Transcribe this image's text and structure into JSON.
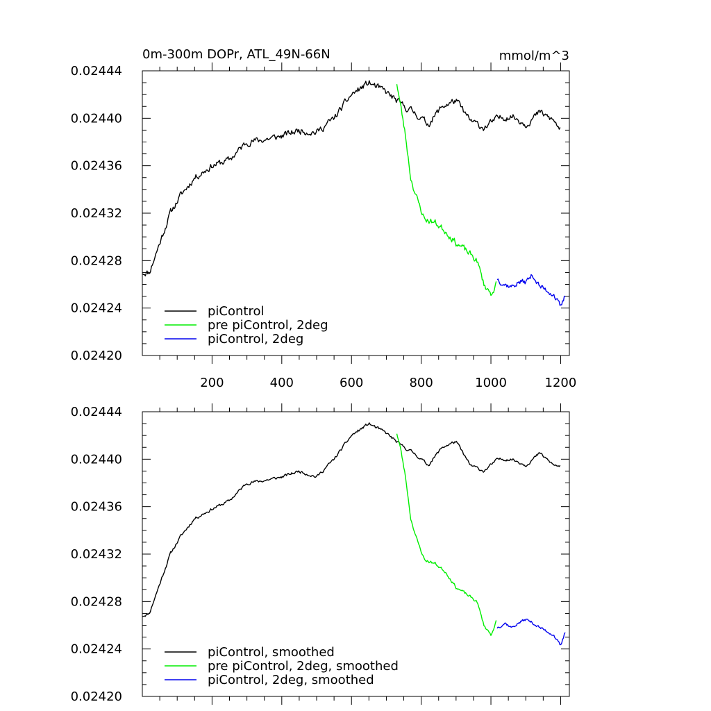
{
  "colors": {
    "piControl": "#000000",
    "pre_2deg": "#00ee00",
    "piControl_2deg": "#0000ee"
  },
  "chart_data": [
    {
      "type": "line",
      "title": "0m-300m DOPr, ATL_49N-66N",
      "units": "mmol/m^3",
      "xlim": [
        0,
        1225
      ],
      "ylim": [
        0.0242,
        0.02444
      ],
      "xticks": [
        200,
        400,
        600,
        800,
        1000,
        1200
      ],
      "xtick_labels": [
        "200",
        "400",
        "600",
        "800",
        "1000",
        "1200"
      ],
      "yticks": [
        0.0242,
        0.02424,
        0.02428,
        0.02432,
        0.02436,
        0.0244,
        0.02444
      ],
      "ytick_labels": [
        "0.02420",
        "0.02424",
        "0.02428",
        "0.02432",
        "0.02436",
        "0.02440",
        "0.02444"
      ],
      "legend": [
        "piControl",
        "pre piControl, 2deg",
        "piControl, 2deg"
      ],
      "legend_position": "bottom-left",
      "series": [
        {
          "name": "piControl",
          "color": "#000000",
          "noise": 1.8,
          "seed": 11,
          "x": [
            1,
            20,
            50,
            80,
            110,
            150,
            200,
            250,
            300,
            350,
            400,
            450,
            500,
            550,
            600,
            650,
            700,
            740,
            780,
            820,
            860,
            900,
            940,
            980,
            1020,
            1060,
            1100,
            1140,
            1180,
            1200
          ],
          "y": [
            0.02427,
            0.02427,
            0.024295,
            0.02432,
            0.024335,
            0.02435,
            0.02436,
            0.024365,
            0.02438,
            0.024382,
            0.024385,
            0.02439,
            0.024388,
            0.0244,
            0.02442,
            0.02443,
            0.024422,
            0.024412,
            0.024405,
            0.024395,
            0.02441,
            0.024415,
            0.024398,
            0.024392,
            0.0244,
            0.024402,
            0.024395,
            0.024405,
            0.024398,
            0.02439
          ]
        },
        {
          "name": "pre piControl, 2deg",
          "color": "#00ee00",
          "noise": 1.8,
          "seed": 23,
          "x": [
            730,
            740,
            755,
            770,
            790,
            810,
            840,
            870,
            900,
            930,
            960,
            980,
            1000,
            1015
          ],
          "y": [
            0.02443,
            0.024412,
            0.024385,
            0.02435,
            0.02433,
            0.024315,
            0.024312,
            0.024305,
            0.024295,
            0.024288,
            0.02428,
            0.02426,
            0.024252,
            0.02426
          ]
        },
        {
          "name": "piControl, 2deg",
          "color": "#0000ee",
          "noise": 1.6,
          "seed": 37,
          "x": [
            1018,
            1040,
            1060,
            1080,
            1100,
            1120,
            1140,
            1160,
            1180,
            1200,
            1215
          ],
          "y": [
            0.024265,
            0.02426,
            0.024258,
            0.024262,
            0.024262,
            0.024268,
            0.024258,
            0.024255,
            0.024252,
            0.02424,
            0.024252
          ]
        }
      ]
    },
    {
      "type": "line",
      "title": "",
      "units": "",
      "xlim": [
        0,
        1225
      ],
      "ylim": [
        0.0242,
        0.02444
      ],
      "xticks": [
        200,
        400,
        600,
        800,
        1000,
        1200
      ],
      "xtick_labels": [],
      "yticks": [
        0.0242,
        0.02424,
        0.02428,
        0.02432,
        0.02436,
        0.0244,
        0.02444
      ],
      "ytick_labels": [
        "0.02420",
        "0.02424",
        "0.02428",
        "0.02432",
        "0.02436",
        "0.02440",
        "0.02444"
      ],
      "legend": [
        "piControl, smoothed",
        "pre piControl, 2deg, smoothed",
        "piControl, 2deg, smoothed"
      ],
      "legend_position": "bottom-left",
      "series": [
        {
          "name": "piControl, smoothed",
          "color": "#000000",
          "noise": 0.8,
          "seed": 11,
          "x": [
            1,
            20,
            50,
            80,
            110,
            150,
            200,
            250,
            300,
            350,
            400,
            450,
            500,
            550,
            600,
            650,
            700,
            740,
            780,
            820,
            860,
            900,
            940,
            980,
            1020,
            1060,
            1100,
            1140,
            1180,
            1200
          ],
          "y": [
            0.024268,
            0.02427,
            0.024295,
            0.02432,
            0.024335,
            0.02435,
            0.024358,
            0.024365,
            0.02438,
            0.024382,
            0.024385,
            0.02439,
            0.024385,
            0.0244,
            0.02442,
            0.02443,
            0.024422,
            0.024412,
            0.024405,
            0.024395,
            0.02441,
            0.024415,
            0.024395,
            0.02439,
            0.0244,
            0.0244,
            0.024395,
            0.024405,
            0.024395,
            0.024394
          ]
        },
        {
          "name": "pre piControl, 2deg, smoothed",
          "color": "#00ee00",
          "noise": 0.8,
          "seed": 23,
          "x": [
            730,
            740,
            755,
            770,
            790,
            810,
            840,
            870,
            900,
            930,
            960,
            980,
            1000,
            1015
          ],
          "y": [
            0.024422,
            0.02441,
            0.024385,
            0.02435,
            0.02433,
            0.024315,
            0.024312,
            0.024305,
            0.024292,
            0.024286,
            0.02428,
            0.02426,
            0.024252,
            0.024263
          ]
        },
        {
          "name": "piControl, 2deg, smoothed",
          "color": "#0000ee",
          "noise": 0.8,
          "seed": 37,
          "x": [
            1018,
            1040,
            1060,
            1080,
            1100,
            1120,
            1140,
            1160,
            1180,
            1200,
            1215
          ],
          "y": [
            0.024258,
            0.024262,
            0.024258,
            0.024262,
            0.024265,
            0.024262,
            0.024258,
            0.024255,
            0.024252,
            0.024242,
            0.024256
          ]
        }
      ]
    }
  ]
}
